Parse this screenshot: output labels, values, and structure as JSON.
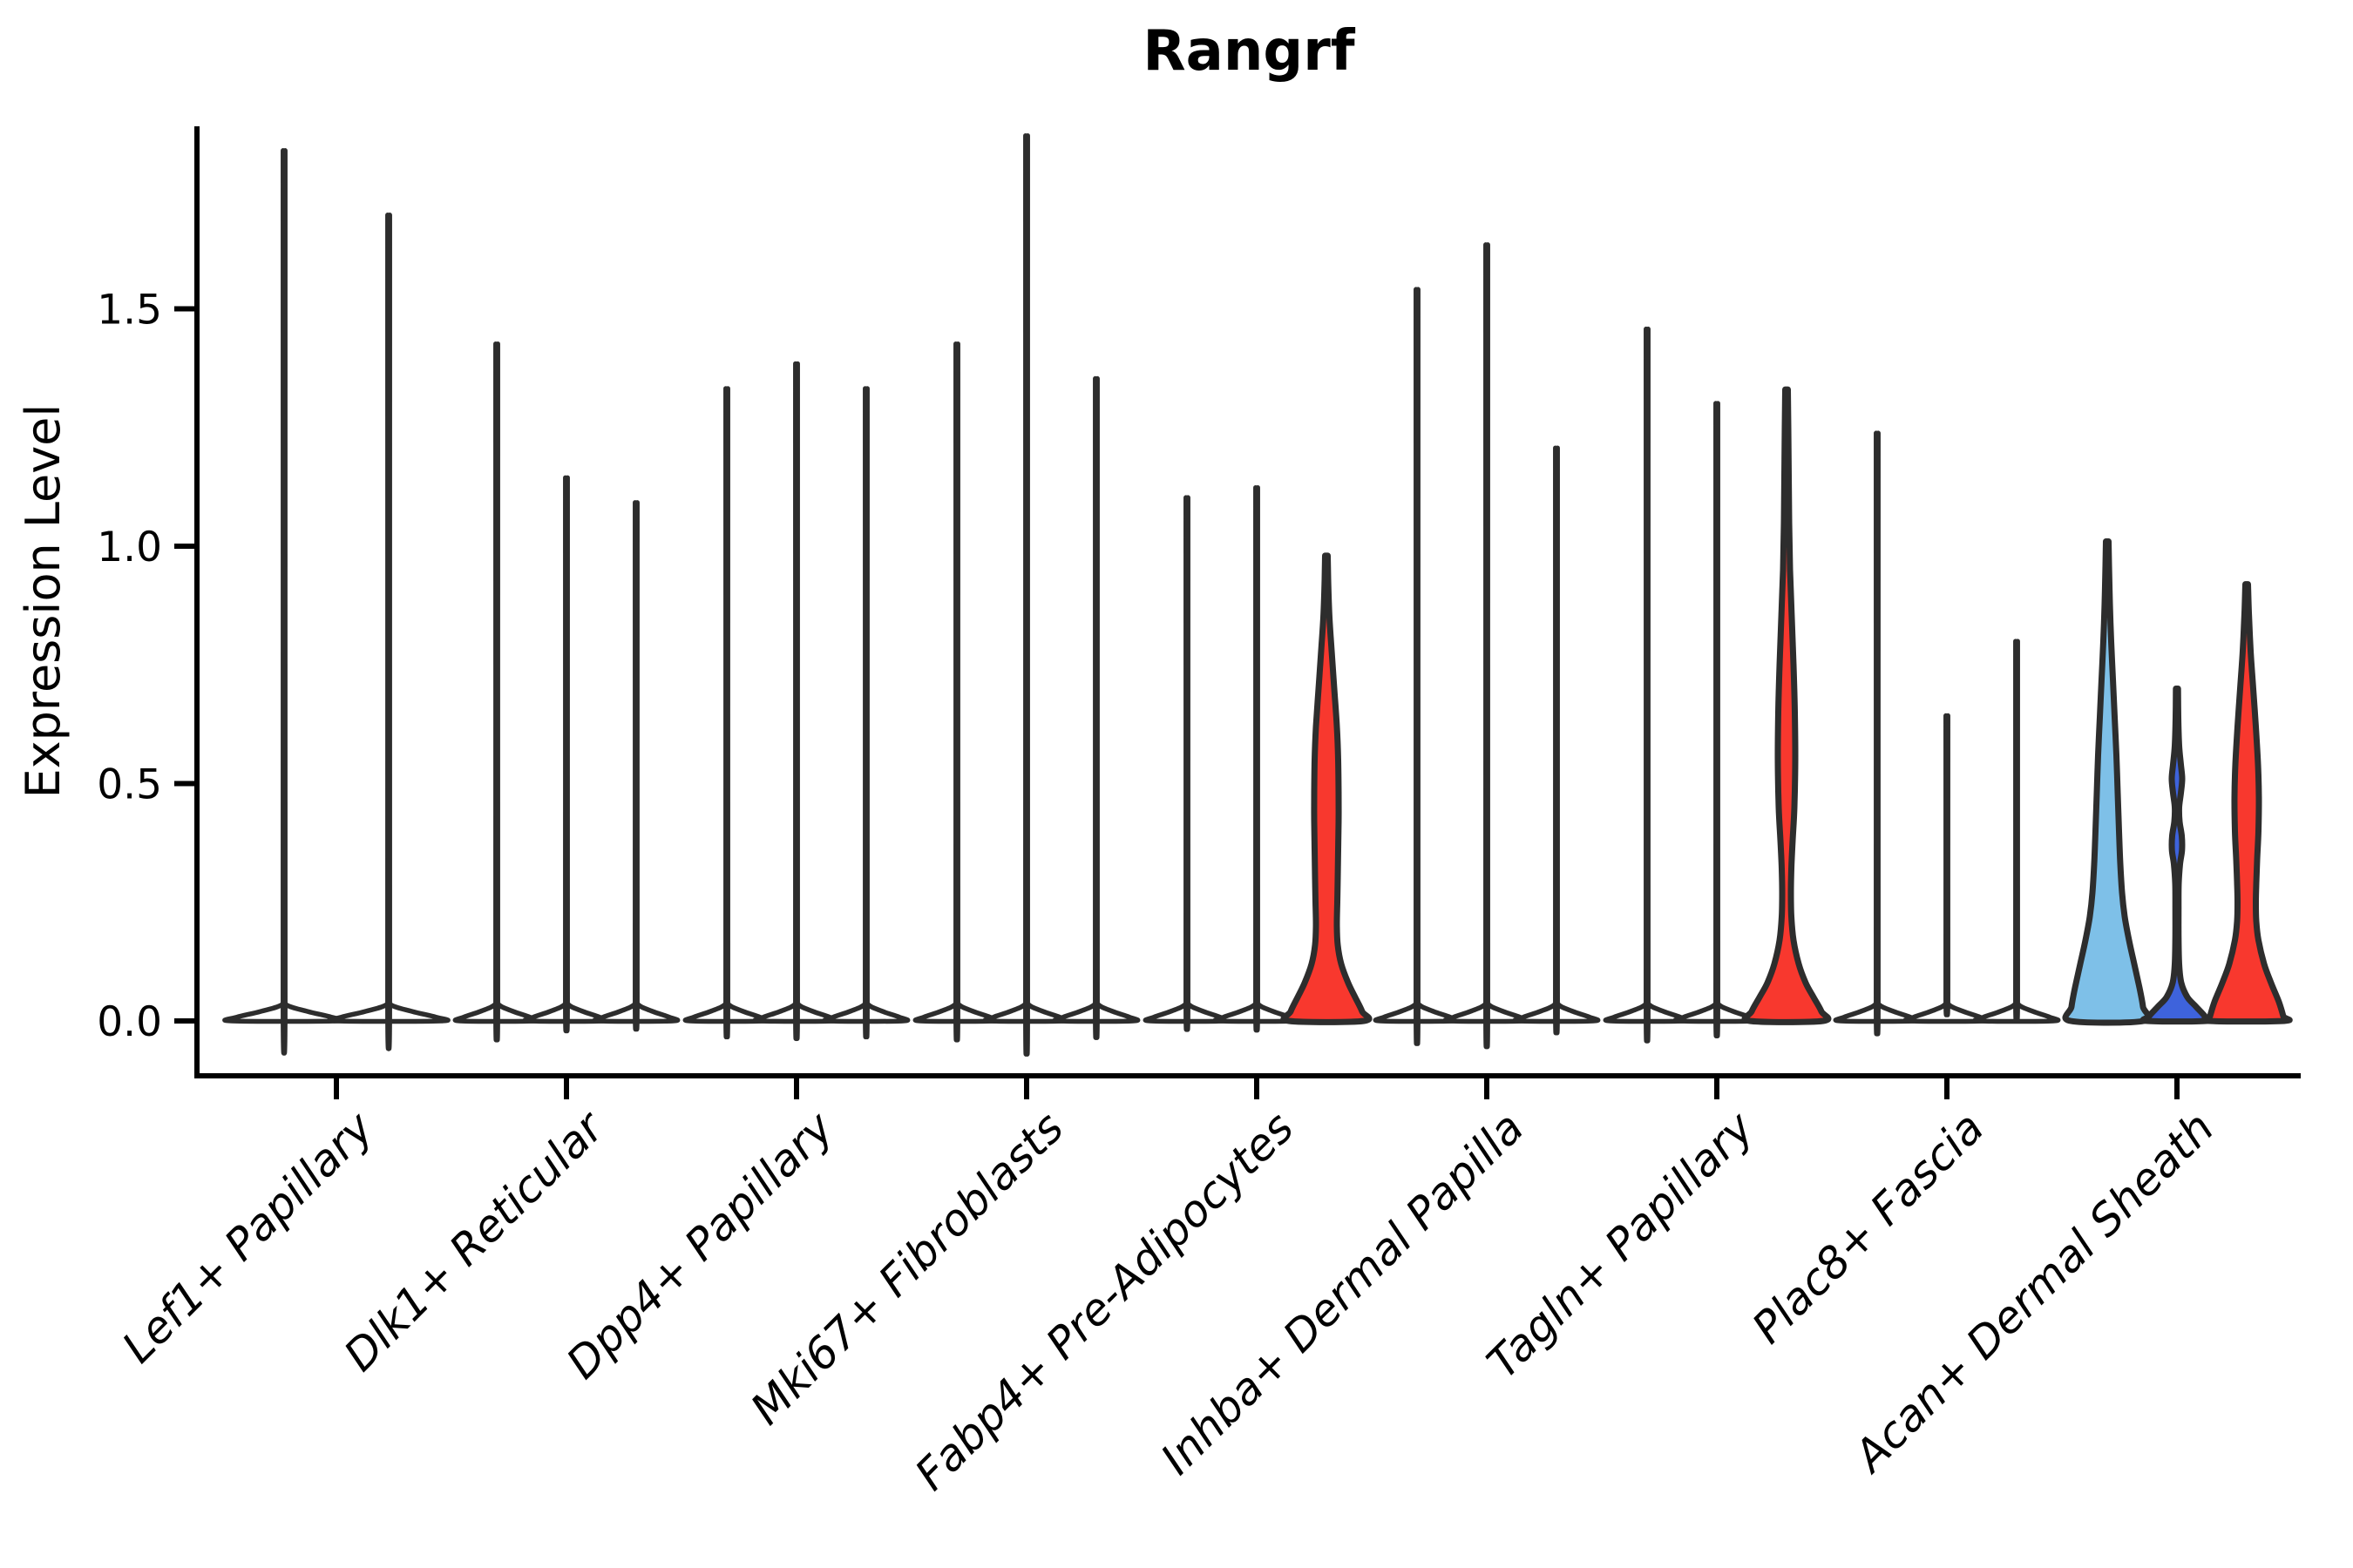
{
  "title": "Rangrf",
  "y_axis": {
    "label": "Expression Level"
  },
  "chart_data": {
    "type": "violin",
    "title": "Rangrf",
    "xlabel": "",
    "ylabel": "Expression Level",
    "ylim": [
      0,
      1.88
    ],
    "yticks": [
      "0.0",
      "0.5",
      "1.0",
      "1.5"
    ],
    "ytick_values": [
      0.0,
      0.5,
      1.0,
      1.5
    ],
    "grid": false,
    "legend": "none",
    "palette": {
      "white": "#FFFFFF",
      "red": "#F8382E",
      "skyblue": "#7EC0E8",
      "royalblue": "#3E63DC"
    },
    "outline_color": "#2D2D2D",
    "axis_color": "#000000",
    "categories": [
      "Lef1+ Papillary",
      "Dlk1+ Reticular",
      "Dpp4+ Papillary",
      "Mki67+ Fibroblasts",
      "Fabp4+ Pre-Adipocytes",
      "Inhba+ Dermal Papilla",
      "Tagln+ Papillary",
      "Plac8+ Fascia",
      "Acan+ Dermal Sheath"
    ],
    "groups": [
      {
        "label": "Lef1+ Papillary",
        "violins": [
          {
            "offset": -60,
            "max": 1.76,
            "color": "white",
            "shape": "spike",
            "base_hw": 60
          },
          {
            "offset": 60,
            "max": 1.63,
            "color": "white",
            "shape": "spike",
            "base_hw": 60
          }
        ]
      },
      {
        "label": "Dlk1+ Reticular",
        "violins": [
          {
            "offset": -80,
            "max": 1.37,
            "color": "white",
            "shape": "spike",
            "base_hw": 42
          },
          {
            "offset": 0,
            "max": 1.1,
            "color": "white",
            "shape": "spike",
            "base_hw": 42
          },
          {
            "offset": 80,
            "max": 1.05,
            "color": "white",
            "shape": "spike",
            "base_hw": 42
          }
        ]
      },
      {
        "label": "Dpp4+ Papillary",
        "violins": [
          {
            "offset": -80,
            "max": 1.28,
            "color": "white",
            "shape": "spike",
            "base_hw": 42
          },
          {
            "offset": 0,
            "max": 1.33,
            "color": "white",
            "shape": "spike",
            "base_hw": 42
          },
          {
            "offset": 80,
            "max": 1.28,
            "color": "white",
            "shape": "spike",
            "base_hw": 42
          }
        ]
      },
      {
        "label": "Mki67+ Fibroblasts",
        "violins": [
          {
            "offset": -80,
            "max": 1.37,
            "color": "white",
            "shape": "spike",
            "base_hw": 42
          },
          {
            "offset": 0,
            "max": 1.79,
            "color": "white",
            "shape": "spike",
            "base_hw": 42
          },
          {
            "offset": 80,
            "max": 1.3,
            "color": "white",
            "shape": "spike",
            "base_hw": 42
          }
        ]
      },
      {
        "label": "Fabp4+ Pre-Adipocytes",
        "violins": [
          {
            "offset": -80,
            "max": 1.06,
            "color": "white",
            "shape": "spike",
            "base_hw": 42
          },
          {
            "offset": 0,
            "max": 1.08,
            "color": "white",
            "shape": "spike",
            "base_hw": 42
          },
          {
            "offset": 80,
            "max": 0.98,
            "color": "red",
            "shape": "profile",
            "profile": [
              [
                0.98,
                1.5
              ],
              [
                0.93,
                2
              ],
              [
                0.85,
                3.5
              ],
              [
                0.78,
                6
              ],
              [
                0.7,
                9
              ],
              [
                0.62,
                12
              ],
              [
                0.55,
                13.5
              ],
              [
                0.48,
                14
              ],
              [
                0.42,
                14
              ],
              [
                0.36,
                13.5
              ],
              [
                0.3,
                13
              ],
              [
                0.25,
                12.5
              ],
              [
                0.2,
                12
              ],
              [
                0.16,
                13
              ],
              [
                0.12,
                17
              ],
              [
                0.08,
                25
              ],
              [
                0.05,
                33
              ],
              [
                0.02,
                41
              ],
              [
                0,
                43
              ]
            ]
          }
        ]
      },
      {
        "label": "Inhba+ Dermal Papilla",
        "violins": [
          {
            "offset": -80,
            "max": 1.48,
            "color": "white",
            "shape": "spike",
            "base_hw": 42
          },
          {
            "offset": 0,
            "max": 1.57,
            "color": "white",
            "shape": "spike",
            "base_hw": 42
          },
          {
            "offset": 80,
            "max": 1.16,
            "color": "white",
            "shape": "spike",
            "base_hw": 42
          }
        ]
      },
      {
        "label": "Tagln+ Papillary",
        "violins": [
          {
            "offset": -80,
            "max": 1.4,
            "color": "white",
            "shape": "spike",
            "base_hw": 42
          },
          {
            "offset": 0,
            "max": 1.25,
            "color": "white",
            "shape": "spike",
            "base_hw": 42
          },
          {
            "offset": 80,
            "max": 1.33,
            "color": "red",
            "shape": "profile",
            "profile": [
              [
                1.33,
                1.5
              ],
              [
                1.25,
                2
              ],
              [
                1.15,
                2.5
              ],
              [
                1.05,
                3
              ],
              [
                0.95,
                4
              ],
              [
                0.85,
                6
              ],
              [
                0.75,
                8
              ],
              [
                0.65,
                9.5
              ],
              [
                0.55,
                10
              ],
              [
                0.45,
                9
              ],
              [
                0.38,
                7
              ],
              [
                0.32,
                5.5
              ],
              [
                0.27,
                5
              ],
              [
                0.22,
                5.5
              ],
              [
                0.17,
                8
              ],
              [
                0.12,
                14
              ],
              [
                0.08,
                22
              ],
              [
                0.05,
                31
              ],
              [
                0.02,
                40
              ],
              [
                0,
                42
              ]
            ]
          }
        ]
      },
      {
        "label": "Plac8+ Fascia",
        "violins": [
          {
            "offset": -80,
            "max": 1.19,
            "color": "white",
            "shape": "spike",
            "base_hw": 42
          },
          {
            "offset": 0,
            "max": 0.62,
            "color": "white",
            "shape": "spike",
            "base_hw": 42
          },
          {
            "offset": 80,
            "max": 0.77,
            "color": "white",
            "shape": "spike",
            "base_hw": 42
          }
        ]
      },
      {
        "label": "Acan+ Dermal Sheath",
        "violins": [
          {
            "offset": -80,
            "max": 1.01,
            "color": "skyblue",
            "shape": "profile",
            "profile": [
              [
                1.01,
                1.5
              ],
              [
                0.96,
                2
              ],
              [
                0.88,
                3
              ],
              [
                0.8,
                4.5
              ],
              [
                0.72,
                6.5
              ],
              [
                0.64,
                8.5
              ],
              [
                0.56,
                10.5
              ],
              [
                0.48,
                12
              ],
              [
                0.4,
                13.5
              ],
              [
                0.33,
                15
              ],
              [
                0.27,
                17
              ],
              [
                0.22,
                20
              ],
              [
                0.17,
                25
              ],
              [
                0.12,
                31
              ],
              [
                0.07,
                37
              ],
              [
                0.03,
                41
              ],
              [
                0,
                42
              ]
            ]
          },
          {
            "offset": 0,
            "max": 0.7,
            "color": "royalblue",
            "shape": "profile",
            "profile": [
              [
                0.7,
                1.2
              ],
              [
                0.64,
                1.5
              ],
              [
                0.58,
                2.5
              ],
              [
                0.54,
                4.5
              ],
              [
                0.51,
                6
              ],
              [
                0.48,
                4.5
              ],
              [
                0.45,
                2.5
              ],
              [
                0.42,
                3
              ],
              [
                0.39,
                5.5
              ],
              [
                0.36,
                5.8
              ],
              [
                0.33,
                3.5
              ],
              [
                0.29,
                2
              ],
              [
                0.24,
                1.8
              ],
              [
                0.18,
                1.8
              ],
              [
                0.12,
                2.5
              ],
              [
                0.08,
                5
              ],
              [
                0.05,
                12
              ],
              [
                0.03,
                22
              ],
              [
                0.01,
                32
              ],
              [
                0,
                34
              ]
            ]
          },
          {
            "offset": 80,
            "max": 0.92,
            "color": "red",
            "shape": "profile",
            "profile": [
              [
                0.92,
                1.5
              ],
              [
                0.86,
                2.5
              ],
              [
                0.78,
                4.5
              ],
              [
                0.7,
                7.5
              ],
              [
                0.62,
                10.5
              ],
              [
                0.54,
                13
              ],
              [
                0.47,
                14
              ],
              [
                0.4,
                13.5
              ],
              [
                0.34,
                12
              ],
              [
                0.29,
                11
              ],
              [
                0.25,
                10.5
              ],
              [
                0.21,
                11
              ],
              [
                0.17,
                13.5
              ],
              [
                0.12,
                20
              ],
              [
                0.08,
                28
              ],
              [
                0.04,
                37
              ],
              [
                0.01,
                42
              ],
              [
                0,
                43
              ]
            ]
          }
        ]
      }
    ]
  }
}
